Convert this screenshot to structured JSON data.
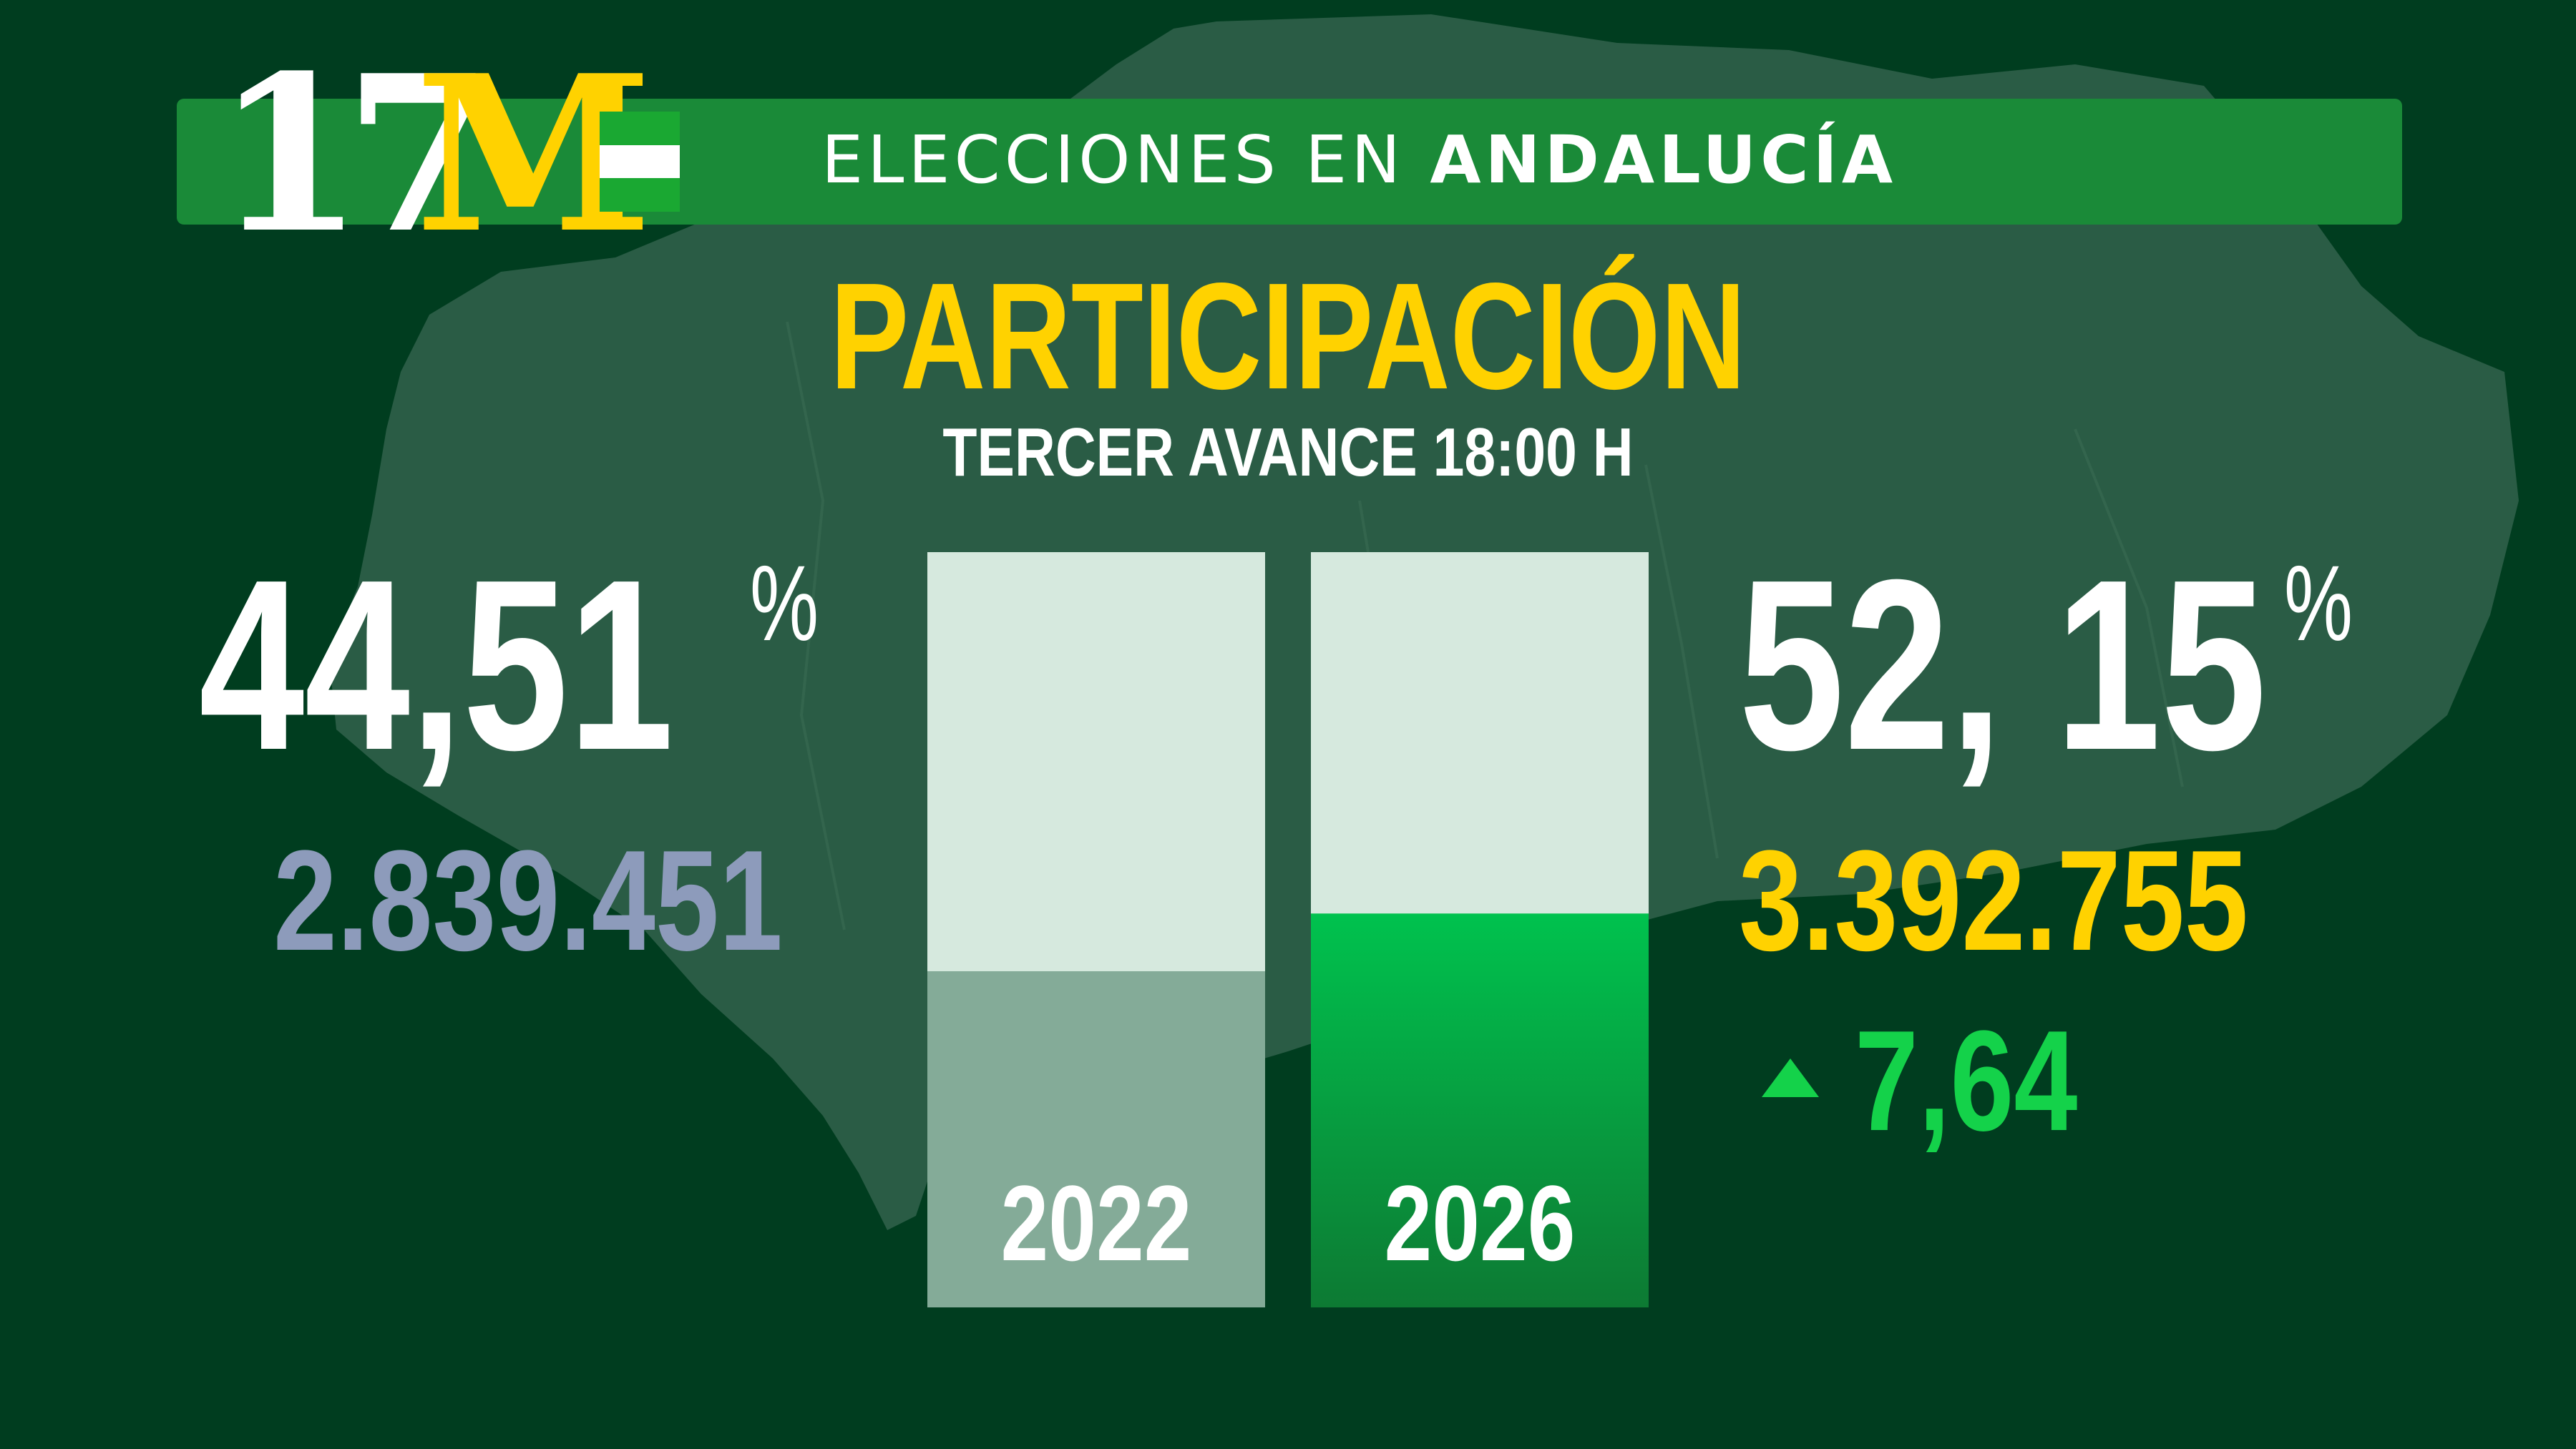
{
  "header": {
    "logo_number": "17",
    "logo_letter": "M",
    "banner_prefix": "ELECCIONES EN ",
    "banner_bold": "ANDALUCÍA"
  },
  "title": "PARTICIPACIÓN",
  "subtitle": "TERCER AVANCE 18:00 H",
  "left": {
    "percent": "44,51",
    "percent_sign": "%",
    "votes": "2.839.451"
  },
  "right": {
    "percent": "52, 15",
    "percent_sign": "%",
    "votes": "3.392.755",
    "delta": "7,64"
  },
  "colors": {
    "background": "#003d1f",
    "map": "#2a5c45",
    "banner": "#1a8a38",
    "accent_yellow": "#ffd200",
    "bar_track": "#d6e9de",
    "bar_2022": "#84ab98",
    "bar_2026_top": "#00c24e",
    "bar_2026_bottom": "#0d7a33",
    "votes_2022": "#8d9bbb",
    "delta_green": "#14d24a"
  },
  "chart_data": {
    "type": "bar",
    "categories": [
      "2022",
      "2026"
    ],
    "values": [
      44.51,
      52.15
    ],
    "ylim": [
      0,
      100
    ],
    "title": "",
    "xlabel": "",
    "ylabel": ""
  }
}
